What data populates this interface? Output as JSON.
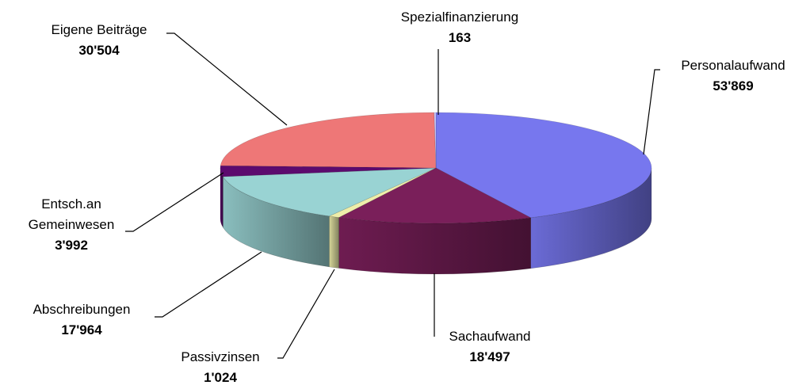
{
  "chart_data": {
    "type": "pie3d",
    "categories": [
      "Personalaufwand",
      "Sachaufwand",
      "Passivzinsen",
      "Abschreibungen",
      "Entsch.an Gemeinwesen",
      "Eigene Beiträge",
      "Spezialfinanzierung"
    ],
    "values": [
      53869,
      18497,
      1024,
      17964,
      3992,
      30504,
      163
    ],
    "value_labels": [
      "53'869",
      "18'497",
      "1'024",
      "17'964",
      "3'992",
      "30'504",
      "163"
    ],
    "colors": [
      "#7777ee",
      "#7a1f5a",
      "#eeeeaa",
      "#99d3d3",
      "#5c0a6e",
      "#ee7777",
      "#ccccff"
    ]
  }
}
